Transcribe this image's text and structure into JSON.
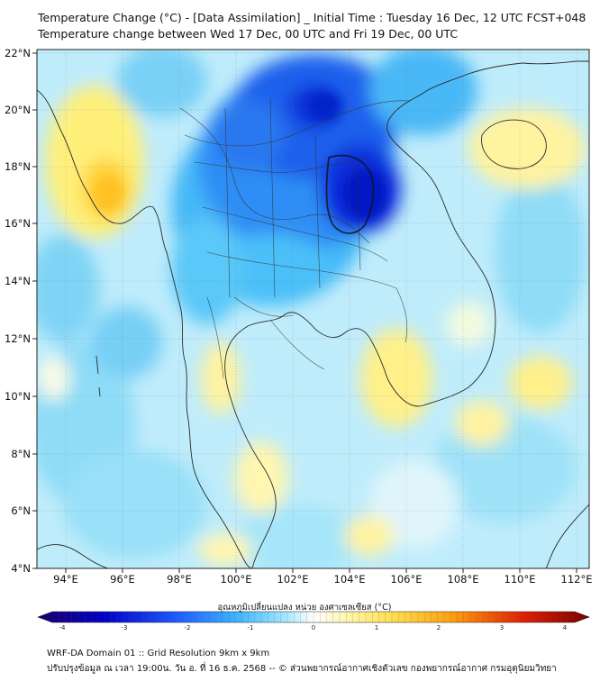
{
  "title": {
    "line1": "Temperature Change (°C) - [Data Assimilation] _ Initial Time : Tuesday 16 Dec, 12 UTC FCST+048",
    "line2": "Temperature change between Wed 17 Dec, 00 UTC and Fri 19 Dec, 00 UTC"
  },
  "map": {
    "lon_ticks": [
      "94°E",
      "96°E",
      "98°E",
      "100°E",
      "102°E",
      "104°E",
      "106°E",
      "108°E",
      "110°E",
      "112°E"
    ],
    "lat_ticks": [
      "22°N",
      "20°N",
      "18°N",
      "16°N",
      "14°N",
      "12°N",
      "10°N",
      "8°N",
      "6°N",
      "4°N"
    ],
    "extent": {
      "lon_min": 93.0,
      "lon_max": 112.5,
      "lat_min": 4.0,
      "lat_max": 22.2
    }
  },
  "colorbar": {
    "label": "อุณหภูมิเปลี่ยนแปลง หน่วย องศาเซลเซียส (°C)",
    "ticks": [
      "-4",
      "-3",
      "-2",
      "-1",
      "0",
      "1",
      "2",
      "3",
      "4"
    ],
    "range": [
      -4,
      4
    ],
    "colors": [
      "#1a0066",
      "#0000c8",
      "#1e5aff",
      "#3cb4ff",
      "#8ee0ff",
      "#ffffff",
      "#fff28a",
      "#ffc020",
      "#ff7a00",
      "#e02000",
      "#7a0000"
    ]
  },
  "footer": {
    "line1": "WRF-DA Domain 01 :: Grid Resolution 9km x 9km",
    "line2": "ปรับปรุงข้อมูล ณ เวลา 19:00น. วัน อ. ที่ 16 ธ.ค. 2568 -- © ส่วนพยากรณ์อากาศเชิงตัวเลข กองพยากรณ์อากาศ กรมอุตุนิยมวิทยา"
  }
}
